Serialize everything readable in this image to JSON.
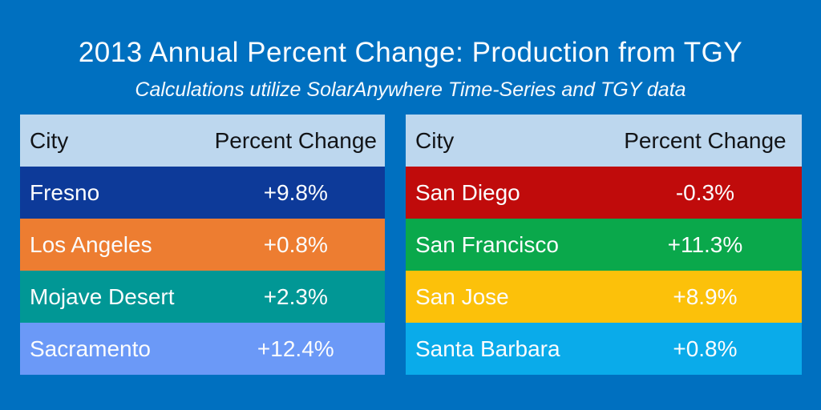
{
  "page": {
    "title": "2013 Annual Percent Change: Production from TGY",
    "subtitle": "Calculations utilize SolarAnywhere Time-Series and TGY data"
  },
  "colors": {
    "background": "#0070c0",
    "header_bg": "#bdd7ee",
    "header_text": "#121417",
    "row_text": "#fbfcfd"
  },
  "tables": [
    {
      "name": "left",
      "columns": [
        "City",
        "Percent Change"
      ],
      "rows": [
        {
          "city": "Fresno",
          "value": "+9.8%",
          "color": "#0d3a99"
        },
        {
          "city": "Los Angeles",
          "value": "+0.8%",
          "color": "#ed7d31"
        },
        {
          "city": "Mojave Desert",
          "value": "+2.3%",
          "color": "#019795"
        },
        {
          "city": "Sacramento",
          "value": "+12.4%",
          "color": "#6b99f7"
        }
      ]
    },
    {
      "name": "right",
      "columns": [
        "City",
        "Percent Change"
      ],
      "rows": [
        {
          "city": "San Diego",
          "value": "-0.3%",
          "color": "#c00b0b"
        },
        {
          "city": "San Francisco",
          "value": "+11.3%",
          "color": "#0aa84b"
        },
        {
          "city": "San Jose",
          "value": "+8.9%",
          "color": "#fcc10a"
        },
        {
          "city": "Santa Barbara",
          "value": "+0.8%",
          "color": "#0aabea"
        }
      ]
    }
  ],
  "chart_data": [
    {
      "type": "table",
      "title": "2013 Annual Percent Change: Production from TGY",
      "subtitle": "Calculations utilize SolarAnywhere Time-Series and TGY data",
      "columns": [
        "City",
        "Percent Change"
      ],
      "rows": [
        [
          "Fresno",
          "+9.8%"
        ],
        [
          "Los Angeles",
          "+0.8%"
        ],
        [
          "Mojave Desert",
          "+2.3%"
        ],
        [
          "Sacramento",
          "+12.4%"
        ]
      ],
      "values_numeric": [
        9.8,
        0.8,
        2.3,
        12.4
      ],
      "legend_position": "none",
      "grid": false
    },
    {
      "type": "table",
      "columns": [
        "City",
        "Percent Change"
      ],
      "rows": [
        [
          "San Diego",
          "-0.3%"
        ],
        [
          "San Francisco",
          "+11.3%"
        ],
        [
          "San Jose",
          "+8.9%"
        ],
        [
          "Santa Barbara",
          "+0.8%"
        ]
      ],
      "values_numeric": [
        -0.3,
        11.3,
        8.9,
        0.8
      ],
      "legend_position": "none",
      "grid": false
    }
  ]
}
